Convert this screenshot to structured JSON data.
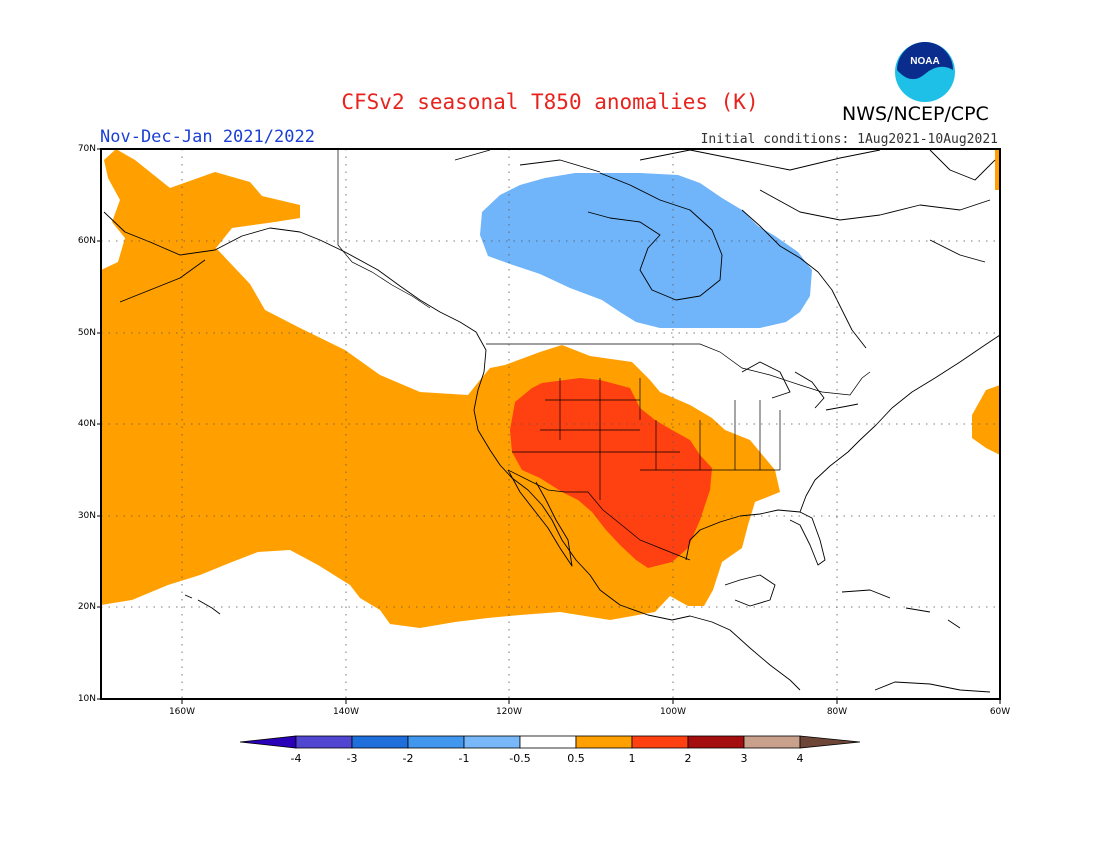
{
  "header": {
    "title": "CFSv2 seasonal T850 anomalies (K)",
    "agency": "NWS/NCEP/CPC",
    "season": "Nov-Dec-Jan 2021/2022",
    "initial_conditions": "Initial conditions: 1Aug2021-10Aug2021",
    "logo_text": "NOAA"
  },
  "map": {
    "projection": "lat-lon",
    "extent": {
      "lon": [
        -172,
        -60
      ],
      "lat": [
        10,
        70
      ]
    },
    "lat_ticks": [
      "70N",
      "60N",
      "50N",
      "40N",
      "30N",
      "20N",
      "10N"
    ],
    "lon_ticks": [
      "160W",
      "140W",
      "120W",
      "100W",
      "80W",
      "60W"
    ],
    "grid": "dotted",
    "anomaly_regions": [
      {
        "category": "0.5 to 1",
        "color": "#ffa000",
        "area": "northeast Pacific, western and south-central United States, Mexico"
      },
      {
        "category": "1 to 2",
        "color": "#ff4010",
        "area": "Southwest and southern Plains, United States"
      },
      {
        "category": "-1 to -0.5",
        "color": "#70b4fa",
        "area": "northern Canada around Hudson Bay"
      }
    ]
  },
  "colorbar": {
    "labels": [
      "-4",
      "-3",
      "-2",
      "-1",
      "-0.5",
      "0.5",
      "1",
      "2",
      "3",
      "4"
    ],
    "colors": [
      "#2a00b8",
      "#5046d2",
      "#1e6edc",
      "#4196ee",
      "#78b8f8",
      "#ffffff",
      "#ffa000",
      "#ff4010",
      "#a50e0e",
      "#c8a08c",
      "#6e4638"
    ]
  }
}
